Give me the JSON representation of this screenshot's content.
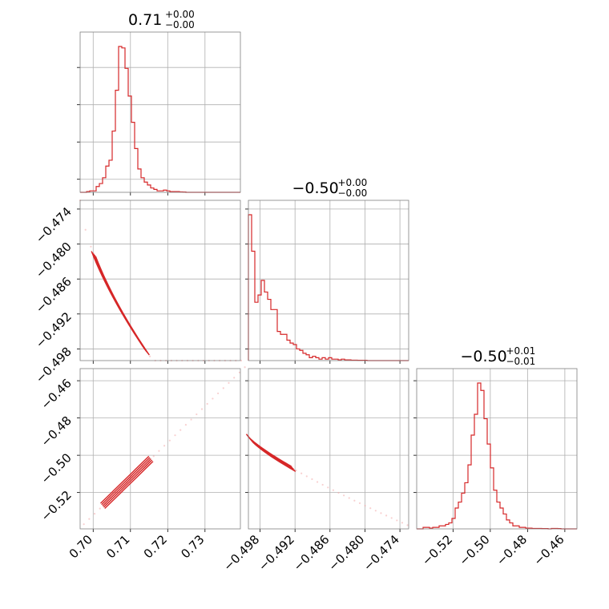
{
  "chart_data": {
    "type": "corner",
    "color": "#d62728",
    "grid": true,
    "titles": [
      {
        "value": "0.71",
        "upper": "+0.00",
        "lower": "−0.00"
      },
      {
        "value": "−0.50",
        "upper": "+0.00",
        "lower": "−0.00"
      },
      {
        "value": "−0.50",
        "upper": "+0.01",
        "lower": "−0.01"
      }
    ],
    "param_ranges": [
      [
        0.6965,
        0.7395
      ],
      [
        -0.5,
        -0.4725
      ],
      [
        -0.5395,
        -0.4535
      ]
    ],
    "ticks": [
      {
        "values": [
          0.7,
          0.71,
          0.72,
          0.73
        ],
        "labels": [
          "0.70",
          "0.71",
          "0.72",
          "0.73"
        ]
      },
      {
        "values": [
          -0.498,
          -0.492,
          -0.486,
          -0.48,
          -0.474
        ],
        "labels": [
          "−0.498",
          "−0.492",
          "−0.486",
          "−0.480",
          "−0.474"
        ]
      },
      {
        "values": [
          -0.52,
          -0.5,
          -0.48,
          -0.46
        ],
        "labels": [
          "−0.52",
          "−0.50",
          "−0.48",
          "−0.46"
        ]
      }
    ],
    "histograms": [
      {
        "bin_start": 0.6965,
        "bin_width": 0.00086,
        "counts": [
          0,
          0,
          0.5,
          1,
          1,
          4,
          6,
          10,
          18,
          22,
          42,
          70,
          100,
          99,
          85,
          66,
          48,
          30,
          16,
          10,
          7,
          5,
          3,
          2,
          1,
          1,
          1.5,
          1,
          0.5,
          0.5,
          0.5,
          0.3,
          0.2,
          0,
          0,
          0,
          0,
          0,
          0,
          0,
          0,
          0,
          0,
          0,
          0,
          0,
          0,
          0,
          0,
          0
        ]
      },
      {
        "bin_start": -0.5,
        "bin_width": 0.00055,
        "counts": [
          100,
          75,
          40,
          45,
          55,
          47,
          42,
          35,
          35,
          20,
          18,
          18,
          14,
          12,
          11,
          8,
          7,
          5,
          4,
          2,
          3,
          2,
          1,
          2,
          1,
          2,
          1,
          1,
          0.5,
          1,
          0.5,
          0.5,
          0.3,
          0.3,
          0.2,
          0.2,
          0.2,
          0,
          0,
          0,
          0,
          0,
          0,
          0,
          0,
          0,
          0,
          0,
          0,
          0
        ]
      },
      {
        "bin_start": -0.5395,
        "bin_width": 0.00172,
        "counts": [
          0,
          0,
          1,
          1,
          0.5,
          1,
          1,
          2,
          2,
          3,
          4,
          7,
          14,
          18,
          24,
          31,
          43,
          63,
          77,
          98,
          93,
          74,
          57,
          41,
          26,
          18,
          14,
          10,
          6,
          4,
          2,
          2,
          1,
          1,
          0.5,
          0.5,
          0.3,
          0.3,
          0.3,
          0.2,
          0.2,
          0,
          0.3,
          0.3,
          0.2,
          0,
          0,
          0,
          0,
          0
        ]
      }
    ],
    "pairs": [
      {
        "x_param": 0,
        "y_param": 1
      },
      {
        "x_param": 0,
        "y_param": 2
      },
      {
        "x_param": 1,
        "y_param": 2
      }
    ]
  }
}
